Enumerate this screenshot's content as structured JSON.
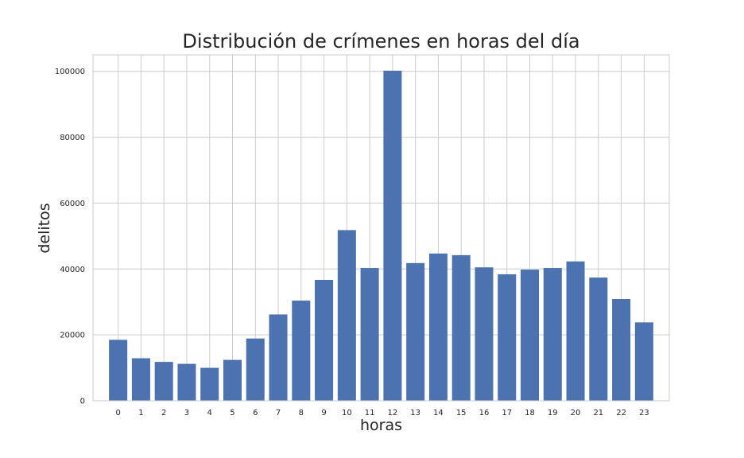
{
  "chart_data": {
    "type": "bar",
    "title": "Distribución de crímenes en horas del día",
    "xlabel": "horas",
    "ylabel": "delitos",
    "categories": [
      "0",
      "1",
      "2",
      "3",
      "4",
      "5",
      "6",
      "7",
      "8",
      "9",
      "10",
      "11",
      "12",
      "13",
      "14",
      "15",
      "16",
      "17",
      "18",
      "19",
      "20",
      "21",
      "22",
      "23"
    ],
    "values": [
      18500,
      12900,
      11800,
      11200,
      10000,
      12400,
      18900,
      26200,
      30400,
      36700,
      51800,
      40300,
      100200,
      41800,
      44700,
      44200,
      40500,
      38400,
      39800,
      40300,
      42300,
      37400,
      30900,
      23800
    ],
    "ylim": [
      0,
      105000
    ],
    "yticks": [
      0,
      20000,
      40000,
      60000,
      80000,
      100000
    ],
    "grid": true,
    "bar_color": "#4c72b0",
    "grid_color": "#cccccc",
    "frame_color": "#cccccc"
  }
}
